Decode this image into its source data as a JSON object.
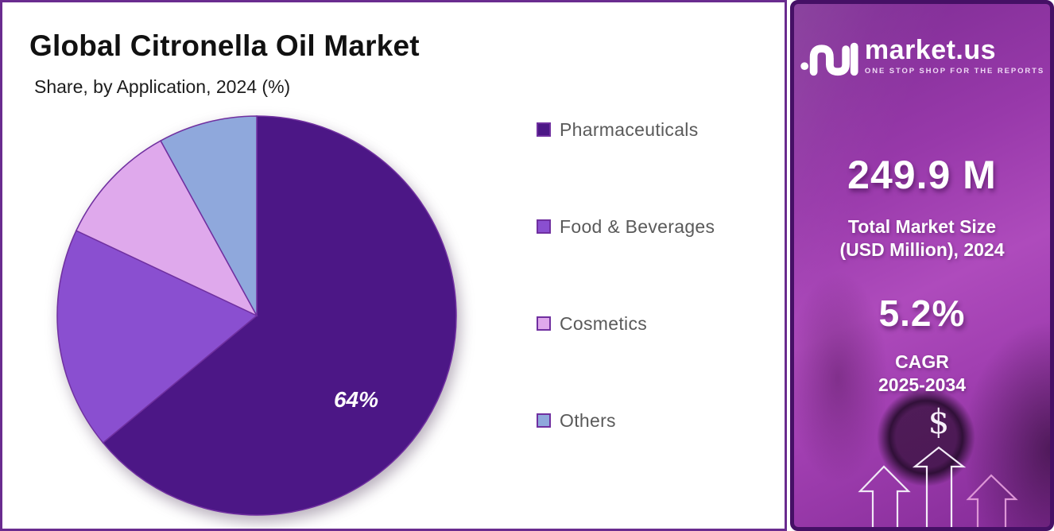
{
  "chart": {
    "title": "Global Citronella Oil Market",
    "subtitle": "Share, by Application, 2024 (%)",
    "chart_data": {
      "type": "pie",
      "categories": [
        "Pharmaceuticals",
        "Food & Beverages",
        "Cosmetics",
        "Others"
      ],
      "values": [
        64,
        18,
        10,
        8
      ],
      "colors": [
        "#4C1786",
        "#8A4FD0",
        "#DFA9EC",
        "#8FA8DC"
      ],
      "slice_labels": [
        "64%",
        "",
        "",
        ""
      ],
      "slice_stroke": "#7030A0",
      "start_angle_deg": 0,
      "direction": "clockwise",
      "legend_position": "right"
    }
  },
  "sidebar": {
    "brand_name": "market.us",
    "brand_tagline": "ONE STOP SHOP FOR THE REPORTS",
    "market_size": {
      "value": "249.9 M",
      "label_line1": "Total Market Size",
      "label_line2": "(USD Million), 2024"
    },
    "cagr": {
      "value": "5.2%",
      "label_line1": "CAGR",
      "label_line2": "2025-2034"
    },
    "dollar_symbol": "$"
  },
  "theme": {
    "panel_border": "#6A2C8F",
    "sidebar_border": "#451065",
    "legend_text_color": "#5A5A5A",
    "title_color": "#111111",
    "arrow_stroke_light": "#F0E8F5",
    "arrow_stroke_pink": "#DD96D6"
  }
}
